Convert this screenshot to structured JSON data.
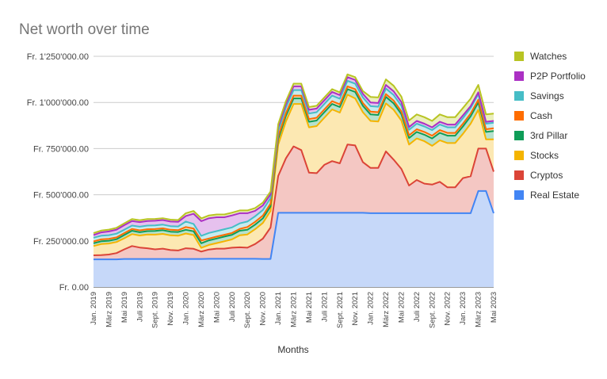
{
  "chart_data": {
    "type": "area",
    "stacked": true,
    "title": "Net worth over time",
    "xlabel": "Months",
    "ylabel": "",
    "ylim": [
      0,
      1250000
    ],
    "grid": true,
    "legend_position": "right",
    "y_ticks": [
      "Fr. 0.00",
      "Fr. 250'000.00",
      "Fr. 500'000.00",
      "Fr. 750'000.00",
      "Fr. 1'000'000.00",
      "Fr. 1'250'000.00"
    ],
    "y_tick_values": [
      0,
      250000,
      500000,
      750000,
      1000000,
      1250000
    ],
    "x_tick_labels": [
      "Jan. 2019",
      "März 2019",
      "Mai 2019",
      "Juli 2019",
      "Sept. 2019",
      "Nov. 2019",
      "Jan. 2020",
      "März 2020",
      "Mai 2020",
      "Juli 2020",
      "Sept. 2020",
      "Nov. 2020",
      "Jan. 2021",
      "März 2021",
      "Mai 2021",
      "Juli 2021",
      "Sept. 2021",
      "Nov. 2021",
      "Jan. 2022",
      "März 2022",
      "Mai 2022",
      "Juli 2022",
      "Sept. 2022",
      "Nov. 2022",
      "Jan. 2023",
      "März 2023",
      "Mai 2023"
    ],
    "x": [
      "2019-01",
      "2019-02",
      "2019-03",
      "2019-04",
      "2019-05",
      "2019-06",
      "2019-07",
      "2019-08",
      "2019-09",
      "2019-10",
      "2019-11",
      "2019-12",
      "2020-01",
      "2020-02",
      "2020-03",
      "2020-04",
      "2020-05",
      "2020-06",
      "2020-07",
      "2020-08",
      "2020-09",
      "2020-10",
      "2020-11",
      "2020-12",
      "2021-01",
      "2021-02",
      "2021-03",
      "2021-04",
      "2021-05",
      "2021-06",
      "2021-07",
      "2021-08",
      "2021-09",
      "2021-10",
      "2021-11",
      "2021-12",
      "2022-01",
      "2022-02",
      "2022-03",
      "2022-04",
      "2022-05",
      "2022-06",
      "2022-07",
      "2022-08",
      "2022-09",
      "2022-10",
      "2022-11",
      "2022-12",
      "2023-01",
      "2023-02",
      "2023-03",
      "2023-04",
      "2023-05"
    ],
    "series": [
      {
        "name": "Real Estate",
        "color": "#4285f4",
        "fill": "#c6d8f9",
        "values": [
          150000,
          150000,
          150000,
          150000,
          152000,
          152000,
          152000,
          152000,
          152000,
          152000,
          152000,
          152000,
          152000,
          152000,
          152000,
          153000,
          153000,
          153000,
          153000,
          153000,
          153000,
          153000,
          152000,
          152000,
          402000,
          402000,
          402000,
          402000,
          402000,
          402000,
          402000,
          402000,
          402000,
          402000,
          402000,
          402000,
          400000,
          400000,
          400000,
          400000,
          400000,
          400000,
          400000,
          400000,
          400000,
          400000,
          400000,
          400000,
          400000,
          400000,
          520000,
          520000,
          400000
        ]
      },
      {
        "name": "Cryptos",
        "color": "#db4437",
        "fill": "#f4c7c3",
        "values": [
          22000,
          23000,
          26000,
          34000,
          52000,
          70000,
          62000,
          58000,
          52000,
          56000,
          48000,
          46000,
          58000,
          55000,
          40000,
          50000,
          55000,
          55000,
          60000,
          62000,
          60000,
          80000,
          110000,
          170000,
          200000,
          295000,
          360000,
          340000,
          218000,
          215000,
          260000,
          280000,
          268000,
          370000,
          365000,
          275000,
          245000,
          245000,
          335000,
          290000,
          240000,
          150000,
          180000,
          160000,
          155000,
          170000,
          140000,
          140000,
          190000,
          200000,
          230000,
          230000,
          225000
        ]
      },
      {
        "name": "Stocks",
        "color": "#f4b400",
        "fill": "#fce8b2",
        "values": [
          50000,
          60000,
          60000,
          60000,
          60000,
          65000,
          65000,
          75000,
          80000,
          80000,
          80000,
          80000,
          80000,
          75000,
          20000,
          25000,
          30000,
          40000,
          45000,
          65000,
          72000,
          80000,
          85000,
          90000,
          170000,
          200000,
          230000,
          250000,
          245000,
          255000,
          255000,
          280000,
          275000,
          270000,
          255000,
          270000,
          255000,
          252000,
          260000,
          270000,
          262000,
          222000,
          225000,
          230000,
          210000,
          225000,
          240000,
          240000,
          240000,
          285000,
          210000,
          50000,
          175000
        ]
      },
      {
        "name": "3rd Pillar",
        "color": "#0f9d58",
        "fill": "#b7e1cd",
        "values": [
          15000,
          15000,
          15000,
          15000,
          18000,
          18000,
          18000,
          18000,
          20000,
          20000,
          20000,
          20000,
          20000,
          20000,
          25000,
          25000,
          25000,
          25000,
          25000,
          25000,
          25000,
          25000,
          25000,
          25000,
          30000,
          30000,
          30000,
          30000,
          30000,
          30000,
          30000,
          30000,
          30000,
          30000,
          35000,
          35000,
          35000,
          35000,
          35000,
          35000,
          35000,
          35000,
          35000,
          35000,
          40000,
          40000,
          40000,
          40000,
          40000,
          40000,
          40000,
          40000,
          45000
        ]
      },
      {
        "name": "Cash",
        "color": "#ff6d00",
        "fill": "#ffd6b3",
        "values": [
          10000,
          10000,
          10000,
          10000,
          10000,
          10000,
          10000,
          10000,
          10000,
          10000,
          10000,
          10000,
          15000,
          15000,
          15000,
          10000,
          10000,
          10000,
          10000,
          10000,
          15000,
          15000,
          15000,
          15000,
          15000,
          15000,
          15000,
          15000,
          15000,
          15000,
          15000,
          15000,
          15000,
          15000,
          15000,
          15000,
          15000,
          15000,
          15000,
          15000,
          15000,
          15000,
          15000,
          15000,
          15000,
          15000,
          15000,
          15000,
          15000,
          15000,
          15000,
          15000,
          15000
        ]
      },
      {
        "name": "Savings",
        "color": "#46bdc6",
        "fill": "#c7ebee",
        "values": [
          20000,
          20000,
          20000,
          20000,
          18000,
          18000,
          20000,
          20000,
          20000,
          20000,
          20000,
          20000,
          30000,
          25000,
          25000,
          30000,
          30000,
          30000,
          30000,
          30000,
          30000,
          30000,
          30000,
          30000,
          30000,
          30000,
          30000,
          30000,
          30000,
          30000,
          30000,
          30000,
          30000,
          30000,
          30000,
          30000,
          30000,
          30000,
          30000,
          30000,
          30000,
          30000,
          30000,
          30000,
          30000,
          30000,
          30000,
          30000,
          30000,
          30000,
          30000,
          30000,
          30000
        ]
      },
      {
        "name": "P2P Portfolio",
        "color": "#ab30c4",
        "fill": "#e6c1ee",
        "values": [
          15000,
          18000,
          20000,
          22000,
          25000,
          25000,
          25000,
          25000,
          25000,
          25000,
          25000,
          25000,
          30000,
          55000,
          80000,
          80000,
          75000,
          65000,
          65000,
          55000,
          45000,
          30000,
          25000,
          20000,
          20000,
          20000,
          20000,
          20000,
          20000,
          20000,
          20000,
          20000,
          20000,
          20000,
          20000,
          20000,
          20000,
          20000,
          20000,
          20000,
          20000,
          15000,
          15000,
          15000,
          15000,
          15000,
          15000,
          15000,
          15000,
          10000,
          10000,
          10000,
          10000
        ]
      },
      {
        "name": "Watches",
        "color": "#b8c423",
        "fill": "#ebefbd",
        "values": [
          10000,
          10000,
          10000,
          10000,
          10000,
          10000,
          10000,
          10000,
          10000,
          10000,
          10000,
          10000,
          15000,
          15000,
          15000,
          15000,
          15000,
          15000,
          15000,
          15000,
          15000,
          15000,
          15000,
          15000,
          15000,
          15000,
          15000,
          15000,
          15000,
          15000,
          15000,
          15000,
          15000,
          15000,
          15000,
          15000,
          30000,
          30000,
          30000,
          30000,
          30000,
          35000,
          35000,
          35000,
          35000,
          40000,
          40000,
          40000,
          40000,
          40000,
          40000,
          40000,
          40000
        ]
      }
    ]
  }
}
